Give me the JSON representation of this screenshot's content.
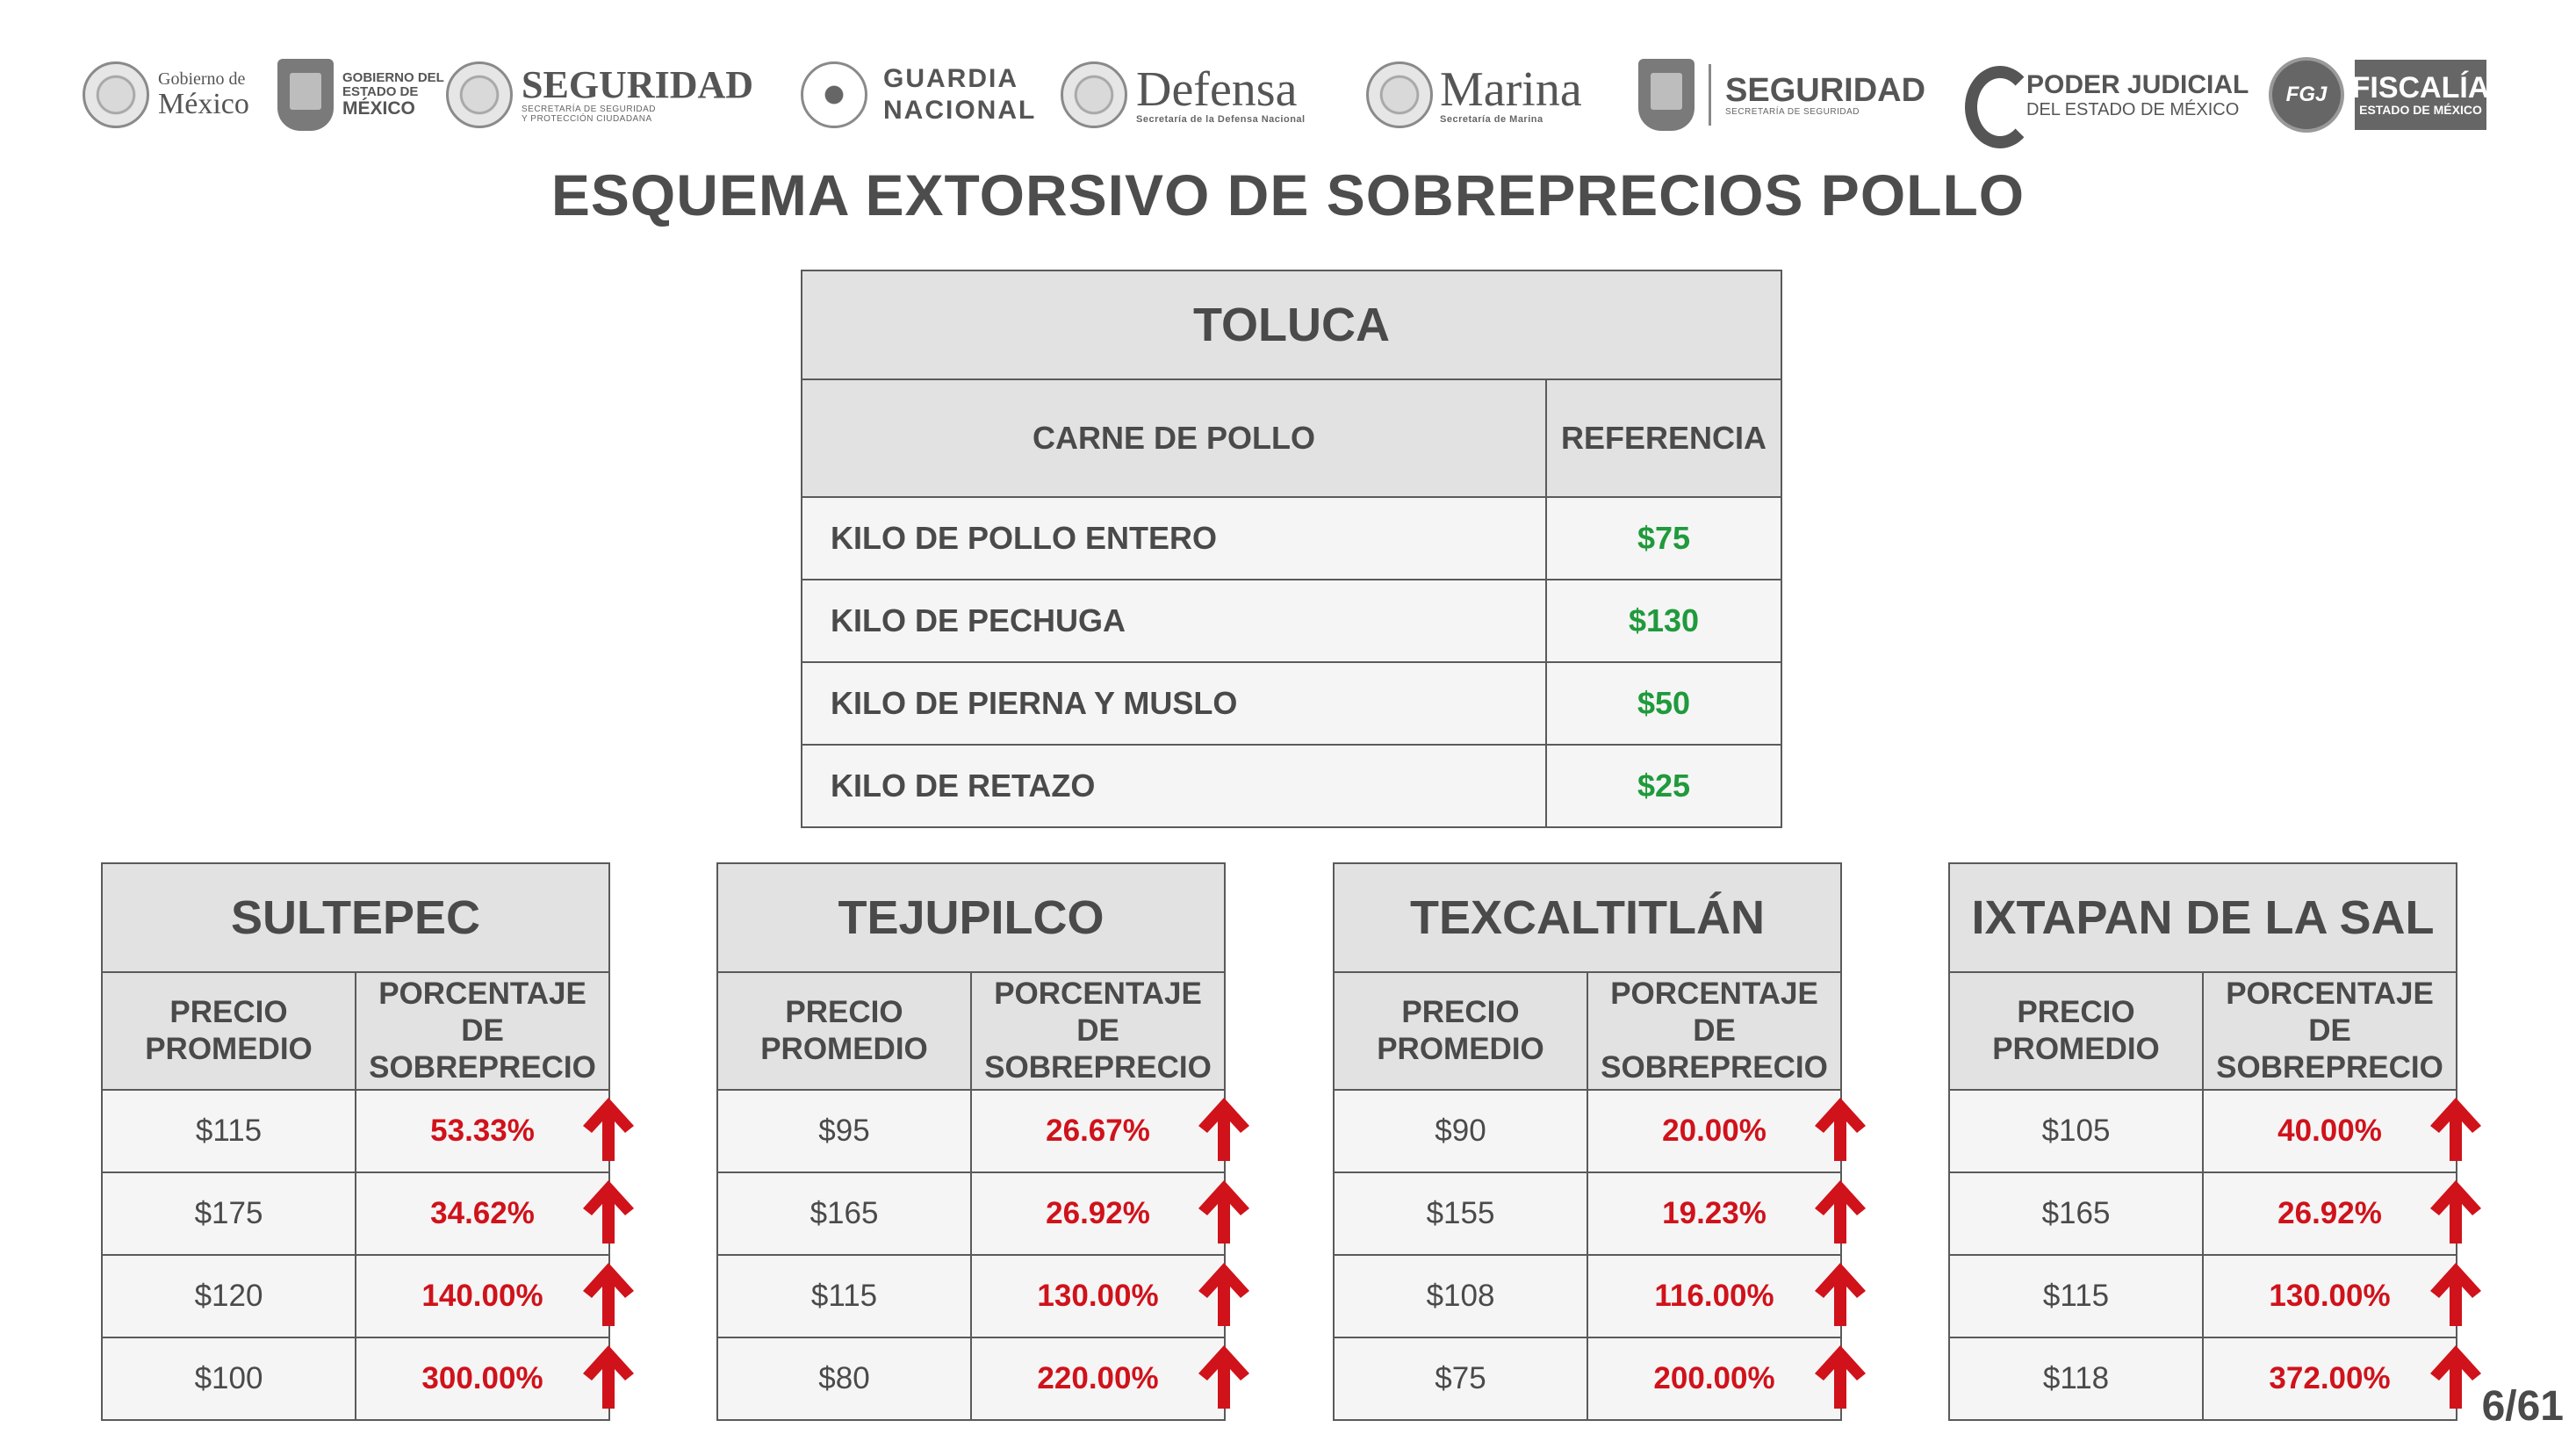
{
  "logos": {
    "gob_mexico": [
      "Gobierno de",
      "México"
    ],
    "edomex": [
      "GOBIERNO DEL",
      "ESTADO DE",
      "MÉXICO"
    ],
    "seguridad": "SEGURIDAD",
    "seguridad_sub": [
      "SECRETARÍA DE SEGURIDAD",
      "Y PROTECCIÓN CIUDADANA"
    ],
    "guardia": [
      "GUARDIA",
      "NACIONAL"
    ],
    "defensa": "Defensa",
    "defensa_sub": "Secretaría de la Defensa Nacional",
    "marina": "Marina",
    "marina_sub": "Secretaría de Marina",
    "seguridad2": "SEGURIDAD",
    "seguridad2_sub": "SECRETARÍA DE SEGURIDAD",
    "poder_judicial": [
      "PODER JUDICIAL",
      "DEL ESTADO DE MÉXICO"
    ],
    "fgj": "FGJ",
    "fiscalia": [
      "FISCALÍA",
      "ESTADO DE MÉXICO"
    ]
  },
  "title": "ESQUEMA EXTORSIVO DE SOBREPRECIOS POLLO",
  "reference": {
    "city": "TOLUCA",
    "col1": "CARNE DE POLLO",
    "col2": "REFERENCIA",
    "rows": [
      {
        "item": "KILO DE POLLO ENTERO",
        "price": "$75"
      },
      {
        "item": "KILO DE PECHUGA",
        "price": "$130"
      },
      {
        "item": "KILO DE PIERNA Y MUSLO",
        "price": "$50"
      },
      {
        "item": "KILO DE RETAZO",
        "price": "$25"
      }
    ]
  },
  "col_price": [
    "PRECIO",
    "PROMEDIO"
  ],
  "col_pct": [
    "PORCENTAJE",
    "DE",
    "SOBREPRECIO"
  ],
  "arrow_icon": "red-up-arrow-icon",
  "colors": {
    "green": "#1f9a3c",
    "red": "#d0121b",
    "header_bg": "#e2e2e2"
  },
  "cities": [
    {
      "name": "SULTEPEC",
      "rows": [
        [
          "$115",
          "53.33%"
        ],
        [
          "$175",
          "34.62%"
        ],
        [
          "$120",
          "140.00%"
        ],
        [
          "$100",
          "300.00%"
        ]
      ]
    },
    {
      "name": "TEJUPILCO",
      "rows": [
        [
          "$95",
          "26.67%"
        ],
        [
          "$165",
          "26.92%"
        ],
        [
          "$115",
          "130.00%"
        ],
        [
          "$80",
          "220.00%"
        ]
      ]
    },
    {
      "name": "TEXCALTITLÁN",
      "rows": [
        [
          "$90",
          "20.00%"
        ],
        [
          "$155",
          "19.23%"
        ],
        [
          "$108",
          "116.00%"
        ],
        [
          "$75",
          "200.00%"
        ]
      ]
    },
    {
      "name": "IXTAPAN DE LA SAL",
      "rows": [
        [
          "$105",
          "40.00%"
        ],
        [
          "$165",
          "26.92%"
        ],
        [
          "$115",
          "130.00%"
        ],
        [
          "$118",
          "372.00%"
        ]
      ]
    }
  ],
  "page": "6/61"
}
